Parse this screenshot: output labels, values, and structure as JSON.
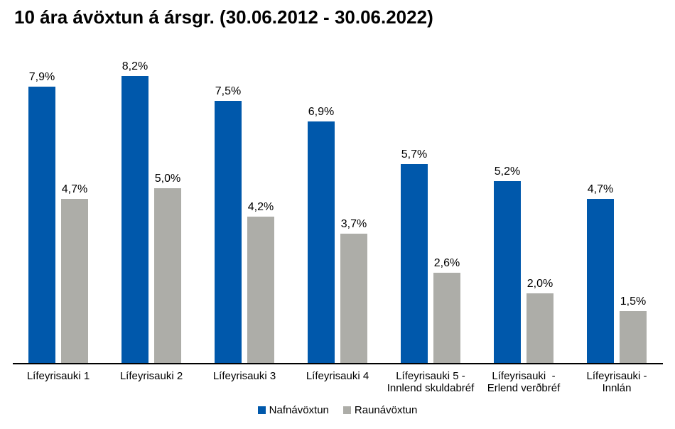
{
  "chart_data": {
    "type": "bar",
    "title": "10 ára ávöxtun á ársgr. (30.06.2012 - 30.06.2022)",
    "categories": [
      "Lífeyrisauki 1",
      "Lífeyrisauki 2",
      "Lífeyrisauki 3",
      "Lífeyrisauki 4",
      "Lífeyrisauki 5 -\nInnlend skuldabréf",
      "Lífeyrisauki  -\nErlend verðbréf",
      "Lífeyrisauki -\nInnlán"
    ],
    "series": [
      {
        "name": "Nafnávöxtun",
        "color": "#0058AB",
        "values": [
          7.9,
          8.2,
          7.5,
          6.9,
          5.7,
          5.2,
          4.7
        ],
        "value_labels": [
          "7,9%",
          "8,2%",
          "7,5%",
          "6,9%",
          "5,7%",
          "5,2%",
          "4,7%"
        ]
      },
      {
        "name": "Raunávöxtun",
        "color": "#ADADA8",
        "values": [
          4.7,
          5.0,
          4.2,
          3.7,
          2.6,
          2.0,
          1.5
        ],
        "value_labels": [
          "4,7%",
          "5,0%",
          "4,2%",
          "3,7%",
          "2,6%",
          "2,0%",
          "1,5%"
        ]
      }
    ],
    "ylim": [
      0,
      8.65
    ],
    "grid": false,
    "legend_position": "bottom",
    "axis_color": "#000000",
    "text_color": "#000000",
    "background_color": "#FFFFFF",
    "value_decimal_separator": ","
  }
}
